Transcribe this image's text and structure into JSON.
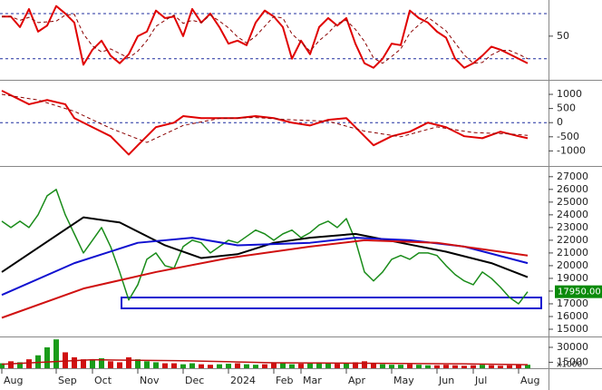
{
  "chart_data": {
    "type": "stock",
    "categories": [
      "Aug",
      null,
      null,
      null,
      null,
      null,
      "Sep",
      null,
      null,
      null,
      "Oct",
      null,
      null,
      null,
      null,
      "Nov",
      null,
      null,
      null,
      null,
      "Dec",
      null,
      null,
      null,
      null,
      "2024",
      null,
      null,
      null,
      null,
      "Feb",
      null,
      null,
      "Mar",
      null,
      null,
      null,
      null,
      "Apr",
      null,
      null,
      null,
      null,
      "May",
      null,
      null,
      null,
      null,
      "Jun",
      null,
      null,
      null,
      "Jul",
      null,
      null,
      null,
      null,
      "Aug",
      null
    ],
    "oscillator": {
      "ylim": [
        -8,
        98
      ],
      "yticks": [
        50
      ],
      "levels": [
        80,
        20
      ],
      "level_color": "#1f2f9f",
      "series": [
        {
          "color": "#e00000",
          "dash": false,
          "values": [
            76,
            76,
            62,
            86,
            56,
            64,
            90,
            80,
            68,
            12,
            32,
            44,
            24,
            14,
            26,
            50,
            56,
            84,
            74,
            76,
            50,
            86,
            68,
            80,
            62,
            40,
            44,
            38,
            68,
            84,
            76,
            62,
            20,
            44,
            26,
            62,
            74,
            64,
            74,
            40,
            14,
            8,
            20,
            40,
            38,
            84,
            74,
            68,
            56,
            48,
            20,
            8,
            14,
            24,
            36,
            32,
            26,
            20,
            14
          ]
        },
        {
          "color": "#8b0000",
          "dash": true,
          "values": [
            76,
            76,
            71,
            75,
            68,
            69,
            70,
            78,
            79,
            53,
            37,
            29,
            33,
            27,
            21,
            30,
            44,
            63,
            71,
            78,
            67,
            71,
            68,
            78,
            70,
            61,
            49,
            41,
            50,
            63,
            76,
            74,
            53,
            42,
            30,
            44,
            54,
            67,
            71,
            59,
            43,
            21,
            14,
            23,
            33,
            54,
            65,
            75,
            66,
            57,
            41,
            25,
            14,
            15,
            25,
            31,
            31,
            26,
            20
          ]
        }
      ]
    },
    "macd": {
      "ylim": [
        -1500,
        1450
      ],
      "yticks": [
        1000,
        500,
        0,
        -500,
        -1000
      ],
      "levels": [
        0
      ],
      "level_color": "#1f2f9f",
      "series": [
        {
          "color": "#e00000",
          "dash": false,
          "x": [
            0,
            1,
            3,
            5,
            7,
            8,
            10,
            12,
            14,
            15,
            17,
            19,
            20,
            22,
            24,
            26,
            28,
            30,
            32,
            34,
            36,
            38,
            39,
            41,
            43,
            45,
            47,
            49,
            51,
            53,
            55,
            57,
            58
          ],
          "values": [
            1130,
            970,
            650,
            800,
            650,
            160,
            -160,
            -480,
            -1130,
            -800,
            -160,
            0,
            230,
            160,
            160,
            160,
            230,
            160,
            0,
            -100,
            100,
            160,
            -160,
            -800,
            -480,
            -320,
            0,
            -160,
            -480,
            -550,
            -320,
            -480,
            -550
          ]
        },
        {
          "color": "#8b0000",
          "dash": true,
          "x": [
            0,
            4,
            8,
            12,
            16,
            20,
            24,
            28,
            32,
            36,
            40,
            44,
            48,
            52,
            56,
            58
          ],
          "values": [
            1000,
            800,
            400,
            -200,
            -700,
            -100,
            150,
            180,
            100,
            50,
            -300,
            -500,
            -150,
            -350,
            -400,
            -450
          ]
        }
      ]
    },
    "price": {
      "ylim": [
        14500,
        27700
      ],
      "yticks": [
        15000,
        16000,
        17000,
        18000,
        19000,
        20000,
        21000,
        22000,
        23000,
        24000,
        25000,
        26000,
        27000
      ],
      "close": {
        "color": "#1a8c1a",
        "values": [
          23500,
          23000,
          23500,
          23000,
          24000,
          25500,
          26000,
          24000,
          22500,
          21000,
          22000,
          23000,
          21500,
          19500,
          17300,
          18500,
          20500,
          21000,
          20000,
          19800,
          21500,
          22000,
          21800,
          21000,
          21500,
          22000,
          21800,
          22300,
          22800,
          22500,
          22000,
          22500,
          22800,
          22200,
          22600,
          23200,
          23500,
          23000,
          23700,
          22000,
          19500,
          18800,
          19500,
          20500,
          20800,
          20500,
          21000,
          21000,
          20800,
          20000,
          19300,
          18800,
          18500,
          19500,
          19000,
          18300,
          17500,
          17000,
          17950
        ]
      },
      "series": [
        {
          "color": "#000000",
          "x": [
            0,
            9,
            13,
            18,
            22,
            26,
            30,
            34,
            39,
            44,
            49,
            54,
            58
          ],
          "values": [
            19500,
            23800,
            23400,
            21600,
            20600,
            20900,
            21800,
            22200,
            22500,
            21800,
            21100,
            20200,
            19100
          ]
        },
        {
          "color": "#1010d0",
          "x": [
            0,
            8,
            15,
            21,
            26,
            34,
            39,
            45,
            51,
            58
          ],
          "values": [
            17700,
            20200,
            21800,
            22200,
            21600,
            21800,
            22200,
            22000,
            21500,
            20200
          ]
        },
        {
          "color": "#d01010",
          "x": [
            0,
            9,
            17,
            25,
            34,
            40,
            48,
            58
          ],
          "values": [
            15900,
            18200,
            19500,
            20600,
            21500,
            22000,
            21800,
            20800
          ]
        }
      ],
      "price_tag": {
        "value": 17950,
        "label": "17950.00",
        "color": "#0a8a0a"
      }
    },
    "volume": {
      "ylim": [
        9000,
        40000
      ],
      "yticks": [
        30000,
        15000
      ],
      "unit_label": "x1000",
      "up_color": "#1a9c1a",
      "down_color": "#d01010",
      "values": [
        14000,
        16000,
        15000,
        18000,
        22000,
        30000,
        38000,
        25000,
        20000,
        18000,
        17000,
        19000,
        16000,
        15000,
        20000,
        18000,
        16000,
        15000,
        14000,
        14000,
        13000,
        14000,
        13000,
        12500,
        13000,
        13500,
        14000,
        13000,
        12500,
        13000,
        14000,
        14500,
        13000,
        13500,
        14000,
        15000,
        14000,
        13500,
        14000,
        15000,
        16000,
        14000,
        13000,
        12500,
        12500,
        13000,
        12500,
        12000,
        12000,
        12500,
        12000,
        11500,
        12000,
        12500,
        12000,
        11500,
        12000,
        13000,
        12500
      ],
      "average": {
        "color": "#c01010",
        "x": [
          0,
          10,
          20,
          30,
          40,
          50,
          58
        ],
        "values": [
          13000,
          17500,
          16500,
          14500,
          14000,
          13500,
          12500
        ]
      }
    }
  }
}
